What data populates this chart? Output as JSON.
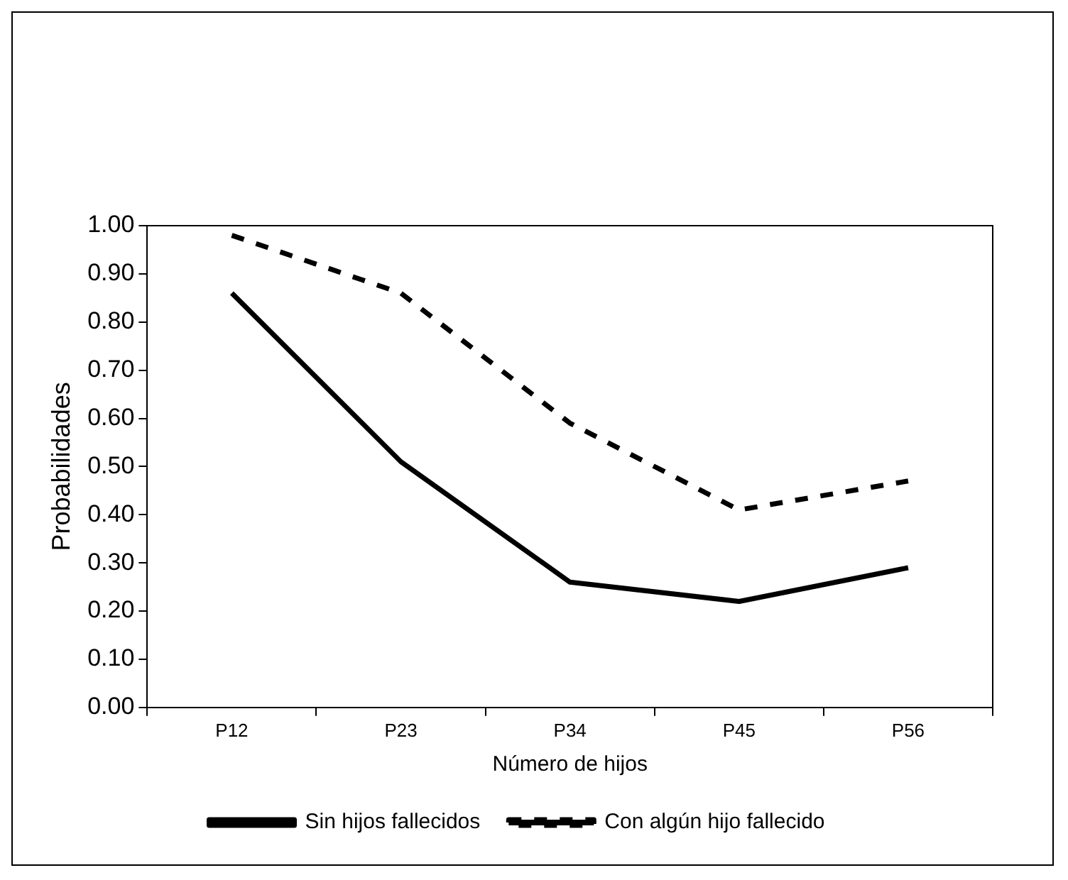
{
  "chart_data": {
    "type": "line",
    "xlabel": "Número de hijos",
    "ylabel": "Probabilidades",
    "categories": [
      "P12",
      "P23",
      "P34",
      "P45",
      "P56"
    ],
    "series": [
      {
        "name": "Sin hijos fallecidos",
        "color": "#000000",
        "values": [
          0.86,
          0.51,
          0.26,
          0.22,
          0.29
        ],
        "line_style": "solid"
      },
      {
        "name": "Con algún hijo fallecido",
        "color": "#000000",
        "values": [
          0.98,
          0.86,
          0.59,
          0.41,
          0.47
        ],
        "line_style": "dashed"
      }
    ],
    "ylim": [
      0,
      1
    ],
    "yticks": [
      {
        "value": 0,
        "label": "0.00"
      },
      {
        "value": 0.1,
        "label": "0.10"
      },
      {
        "value": 0.2,
        "label": "0.20"
      },
      {
        "value": 0.3,
        "label": "0.30"
      },
      {
        "value": 0.4,
        "label": "0.40"
      },
      {
        "value": 0.5,
        "label": "0.50"
      },
      {
        "value": 0.6,
        "label": "0.60"
      },
      {
        "value": 0.7,
        "label": "0.70"
      },
      {
        "value": 0.8,
        "label": "0.80"
      },
      {
        "value": 0.9,
        "label": "0.90"
      },
      {
        "value": 1,
        "label": "1.00"
      }
    ],
    "grid": false,
    "legend": "bottom",
    "marker": "none"
  }
}
